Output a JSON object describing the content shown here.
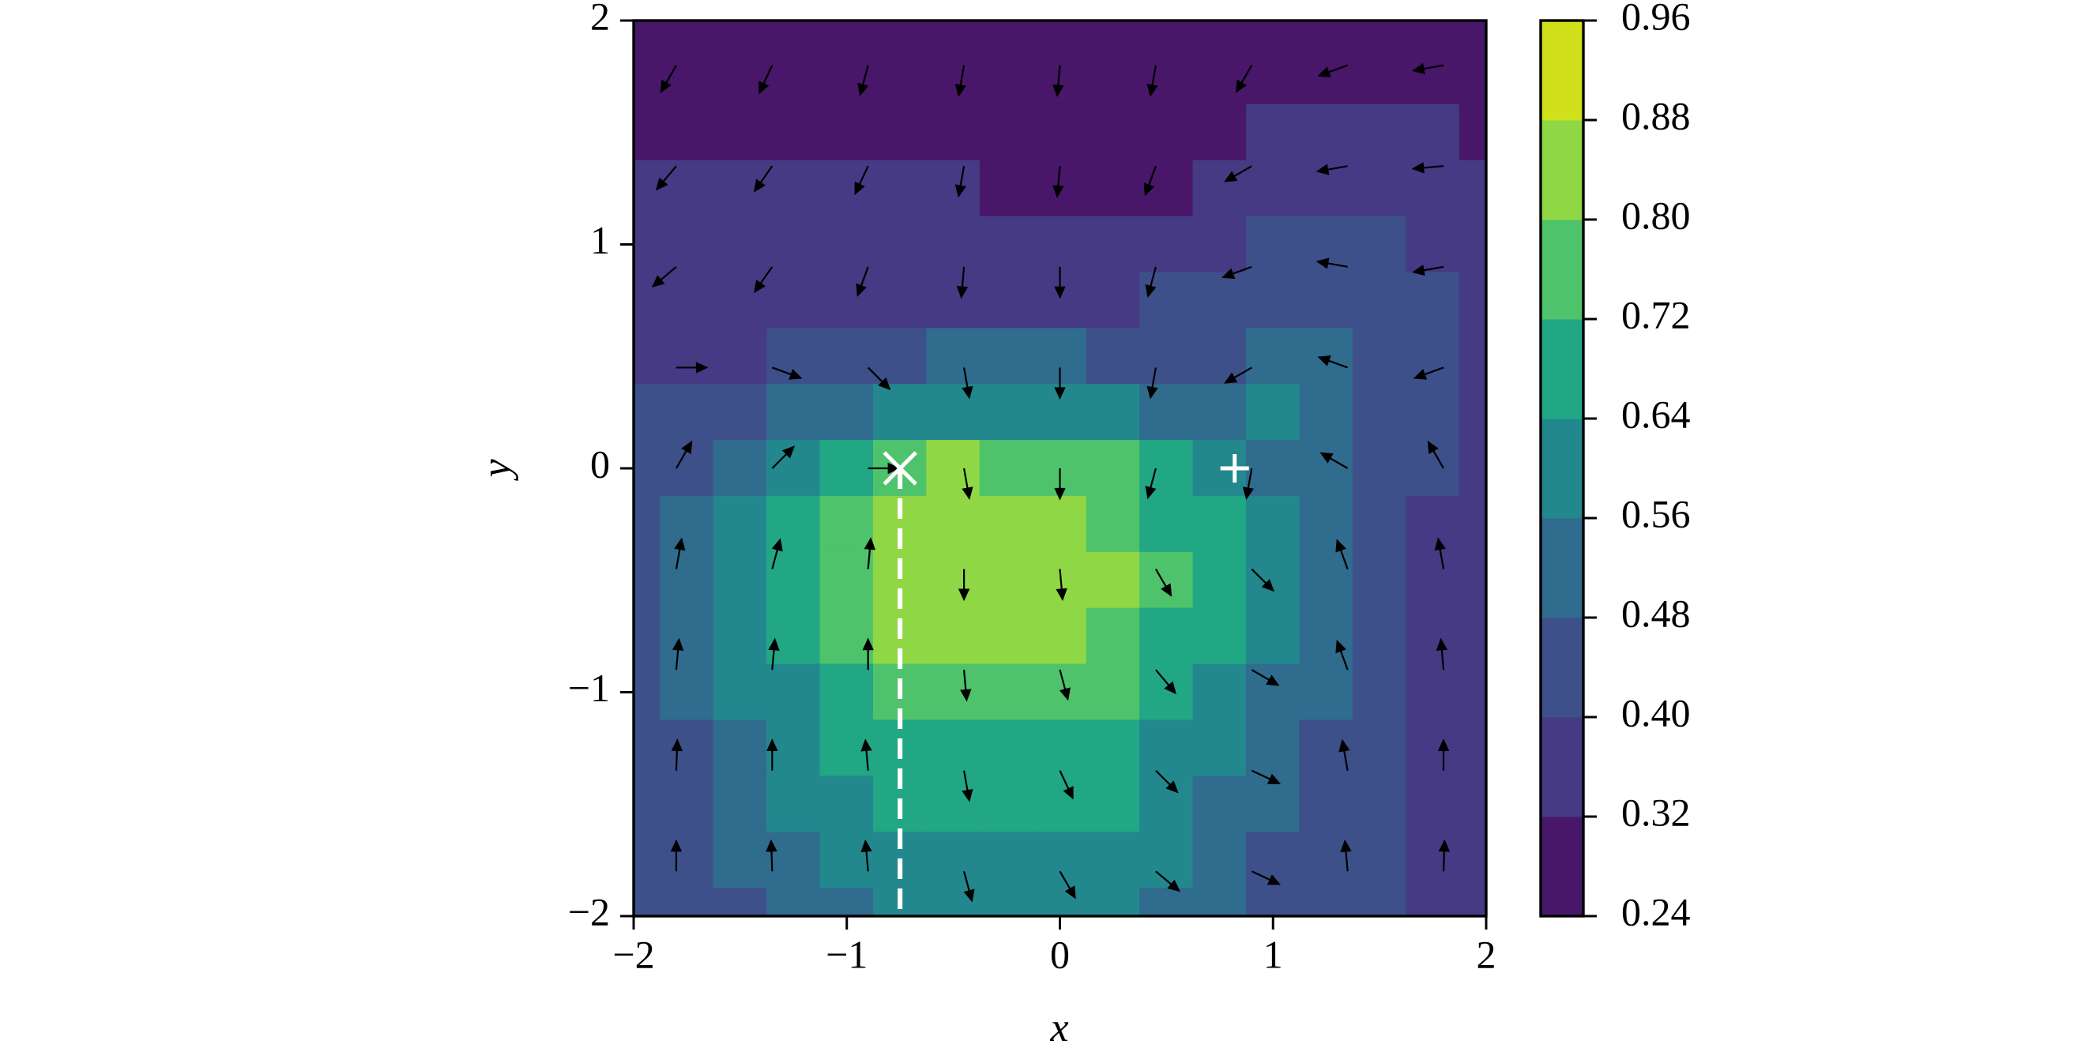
{
  "chart_data": {
    "type": "contourf",
    "x_label": "x",
    "y_label": "y",
    "xlim": [
      -2,
      2
    ],
    "ylim": [
      -2,
      2
    ],
    "xticks": [
      {
        "value": -2,
        "label": "−2"
      },
      {
        "value": -1,
        "label": "−1"
      },
      0,
      1,
      2
    ],
    "yticks": [
      {
        "value": -2,
        "label": "−2"
      },
      {
        "value": -1,
        "label": "−1"
      },
      0,
      1,
      2
    ],
    "levels": [
      0.24,
      0.32,
      {
        "value": 0.4,
        "label": "0.40"
      },
      0.48,
      0.56,
      0.64,
      0.72,
      {
        "value": 0.8,
        "label": "0.80"
      },
      0.88,
      0.96
    ],
    "colors": [
      "#481769",
      "#453a83",
      "#3d508a",
      "#2f6c8e",
      "#23888e",
      "#22a785",
      "#4ec36b",
      "#8fd744",
      "#d0e11c"
    ],
    "grid_x": [
      -2,
      -1.75,
      -1.5,
      -1.25,
      -1,
      -0.75,
      -0.5,
      -0.25,
      0,
      0.25,
      0.5,
      0.75,
      1,
      1.25,
      1.5,
      1.75,
      2
    ],
    "grid_y": [
      2,
      1.75,
      1.5,
      1.25,
      1,
      0.75,
      0.5,
      0.25,
      0,
      -0.25,
      -0.5,
      -0.75,
      -1,
      -1.25,
      -1.5,
      -1.75,
      -2
    ],
    "z": [
      [
        0.27,
        0.27,
        0.27,
        0.27,
        0.27,
        0.27,
        0.27,
        0.27,
        0.27,
        0.27,
        0.27,
        0.27,
        0.27,
        0.27,
        0.27,
        0.27,
        0.27
      ],
      [
        0.29,
        0.29,
        0.29,
        0.29,
        0.29,
        0.29,
        0.29,
        0.29,
        0.29,
        0.29,
        0.29,
        0.29,
        0.3,
        0.3,
        0.3,
        0.3,
        0.29
      ],
      [
        0.3,
        0.3,
        0.3,
        0.3,
        0.3,
        0.3,
        0.3,
        0.3,
        0.3,
        0.3,
        0.3,
        0.31,
        0.33,
        0.34,
        0.34,
        0.33,
        0.31
      ],
      [
        0.33,
        0.33,
        0.33,
        0.32,
        0.32,
        0.32,
        0.32,
        0.31,
        0.31,
        0.31,
        0.31,
        0.33,
        0.35,
        0.37,
        0.37,
        0.36,
        0.34
      ],
      [
        0.35,
        0.35,
        0.35,
        0.36,
        0.36,
        0.36,
        0.36,
        0.36,
        0.36,
        0.36,
        0.37,
        0.39,
        0.42,
        0.43,
        0.42,
        0.39,
        0.37
      ],
      [
        0.37,
        0.37,
        0.38,
        0.38,
        0.39,
        0.39,
        0.39,
        0.39,
        0.39,
        0.39,
        0.41,
        0.43,
        0.46,
        0.47,
        0.44,
        0.41,
        0.37
      ],
      [
        0.37,
        0.38,
        0.39,
        0.41,
        0.44,
        0.47,
        0.48,
        0.49,
        0.48,
        0.46,
        0.43,
        0.47,
        0.5,
        0.5,
        0.45,
        0.41,
        0.37
      ],
      [
        0.41,
        0.42,
        0.45,
        0.5,
        0.55,
        0.59,
        0.61,
        0.61,
        0.6,
        0.57,
        0.54,
        0.49,
        0.57,
        0.52,
        0.45,
        0.4,
        0.36
      ],
      [
        0.42,
        0.47,
        0.55,
        0.62,
        0.7,
        0.79,
        0.8,
        0.79,
        0.77,
        0.74,
        0.7,
        0.63,
        0.55,
        0.5,
        0.44,
        0.4,
        0.36
      ],
      [
        0.43,
        0.49,
        0.58,
        0.66,
        0.73,
        0.8,
        0.85,
        0.86,
        0.82,
        0.77,
        0.7,
        0.64,
        0.57,
        0.5,
        0.43,
        0.37,
        0.36
      ],
      [
        0.43,
        0.51,
        0.59,
        0.67,
        0.76,
        0.84,
        0.86,
        0.86,
        0.86,
        0.8,
        0.73,
        0.65,
        0.58,
        0.51,
        0.44,
        0.37,
        0.36
      ],
      [
        0.43,
        0.5,
        0.58,
        0.66,
        0.74,
        0.81,
        0.86,
        0.86,
        0.84,
        0.78,
        0.71,
        0.64,
        0.57,
        0.5,
        0.43,
        0.37,
        0.36
      ],
      [
        0.43,
        0.48,
        0.56,
        0.63,
        0.7,
        0.77,
        0.78,
        0.78,
        0.78,
        0.74,
        0.68,
        0.62,
        0.55,
        0.48,
        0.42,
        0.37,
        0.36
      ],
      [
        0.43,
        0.45,
        0.52,
        0.59,
        0.66,
        0.68,
        0.7,
        0.7,
        0.69,
        0.68,
        0.63,
        0.58,
        0.52,
        0.46,
        0.4,
        0.37,
        0.36
      ],
      [
        0.43,
        0.46,
        0.52,
        0.57,
        0.62,
        0.65,
        0.67,
        0.67,
        0.66,
        0.64,
        0.6,
        0.55,
        0.5,
        0.44,
        0.4,
        0.37,
        0.36
      ],
      [
        0.43,
        0.45,
        0.5,
        0.55,
        0.58,
        0.6,
        0.61,
        0.61,
        0.6,
        0.59,
        0.56,
        0.52,
        0.47,
        0.43,
        0.4,
        0.37,
        0.36
      ],
      [
        0.43,
        0.44,
        0.47,
        0.51,
        0.55,
        0.57,
        0.58,
        0.58,
        0.57,
        0.56,
        0.53,
        0.49,
        0.45,
        0.43,
        0.4,
        0.37,
        0.36
      ]
    ],
    "quiver": {
      "x": [
        -1.8,
        -1.35,
        -0.9,
        -0.45,
        0,
        0.45,
        0.9,
        1.35,
        1.8
      ],
      "y": [
        1.8,
        1.35,
        0.9,
        0.45,
        0,
        -0.45,
        -0.9,
        -1.35,
        -1.8
      ],
      "angle": [
        [
          -120,
          -115,
          -105,
          -100,
          -95,
          -100,
          -120,
          -160,
          -170
        ],
        [
          -130,
          -125,
          -115,
          -100,
          -95,
          -110,
          -150,
          -170,
          -175
        ],
        [
          -140,
          -125,
          -110,
          -95,
          -90,
          -105,
          -160,
          170,
          -170
        ],
        [
          0,
          -20,
          -45,
          -80,
          -90,
          -100,
          -150,
          160,
          -160
        ],
        [
          60,
          45,
          0,
          -80,
          -90,
          -105,
          -100,
          150,
          120
        ],
        [
          80,
          75,
          85,
          -90,
          -85,
          -60,
          -45,
          110,
          100
        ],
        [
          85,
          85,
          90,
          -85,
          -75,
          -50,
          -30,
          110,
          95
        ],
        [
          88,
          90,
          95,
          -80,
          -65,
          -45,
          -25,
          100,
          90
        ],
        [
          90,
          92,
          95,
          -75,
          -60,
          -40,
          -25,
          95,
          88
        ]
      ],
      "color": "#000000"
    },
    "markers": [
      {
        "x": -0.75,
        "y": 0,
        "symbol": "x",
        "color": "#ffffff"
      },
      {
        "x": 0.82,
        "y": 0,
        "symbol": "+",
        "color": "#ffffff"
      }
    ],
    "dashed_line": {
      "x": -0.75,
      "y": [
        0,
        -2
      ],
      "color": "#ffffff"
    }
  }
}
